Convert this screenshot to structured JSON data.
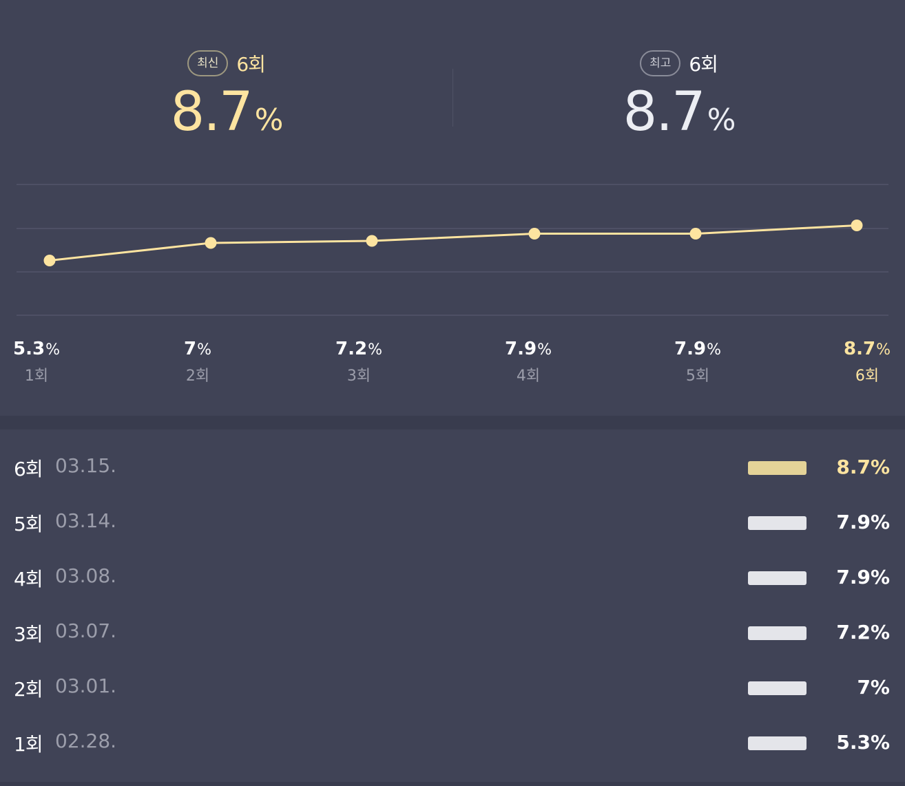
{
  "summary": {
    "latest": {
      "badge": "최신",
      "round": "6회",
      "value": "8.7",
      "unit": "%"
    },
    "best": {
      "badge": "최고",
      "round": "6회",
      "value": "8.7",
      "unit": "%"
    }
  },
  "colors": {
    "background": "#404356",
    "highlight": "#fde4a0",
    "bar": "#e4e5ea",
    "bar_highlight": "#e4d398",
    "muted_text": "#9c9eab"
  },
  "chart_data": {
    "type": "line",
    "categories": [
      "1회",
      "2회",
      "3회",
      "4회",
      "5회",
      "6회"
    ],
    "values": [
      5.3,
      7,
      7.2,
      7.9,
      7.9,
      8.7
    ],
    "value_labels": [
      "5.3",
      "7",
      "7.2",
      "7.9",
      "7.9",
      "8.7"
    ],
    "unit": "%",
    "highlight_index": 5,
    "grid": true,
    "title": "",
    "xlabel": "",
    "ylabel": ""
  },
  "list": {
    "rows": [
      {
        "round": "6회",
        "date": "03.15.",
        "rating": "8.7%",
        "highlight": true
      },
      {
        "round": "5회",
        "date": "03.14.",
        "rating": "7.9%",
        "highlight": false
      },
      {
        "round": "4회",
        "date": "03.08.",
        "rating": "7.9%",
        "highlight": false
      },
      {
        "round": "3회",
        "date": "03.07.",
        "rating": "7.2%",
        "highlight": false
      },
      {
        "round": "2회",
        "date": "03.01.",
        "rating": "7%",
        "highlight": false
      },
      {
        "round": "1회",
        "date": "02.28.",
        "rating": "5.3%",
        "highlight": false
      }
    ]
  }
}
